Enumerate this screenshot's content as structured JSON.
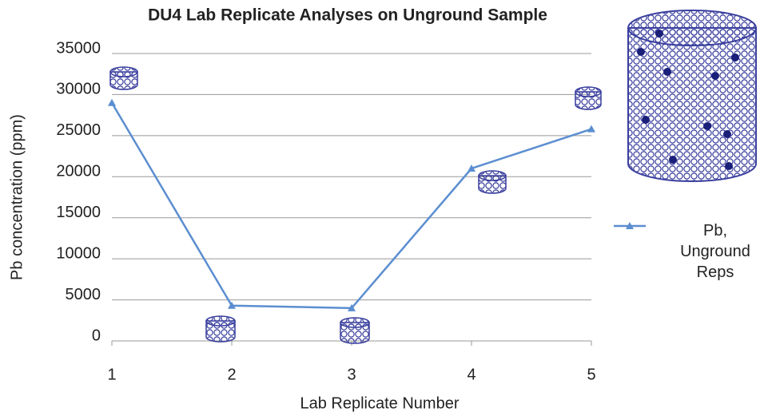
{
  "chart_data": {
    "type": "line",
    "title": "DU4 Lab Replicate Analyses on Unground Sample",
    "x_label": "Lab Replicate Number",
    "y_label": "Pb concentration (ppm)",
    "x": [
      1,
      2,
      3,
      4,
      5
    ],
    "series": [
      {
        "name": "Pb, Unground Reps",
        "color": "#5b8ed0",
        "values": [
          29000,
          4300,
          4000,
          21000,
          25800
        ]
      }
    ],
    "xlim": [
      1,
      5
    ],
    "xticks": [
      1,
      2,
      3,
      4,
      5
    ],
    "ylim": [
      0,
      35000
    ],
    "yticks": [
      0,
      5000,
      10000,
      15000,
      20000,
      25000,
      30000,
      35000
    ],
    "grid": true,
    "legend": "right"
  }
}
